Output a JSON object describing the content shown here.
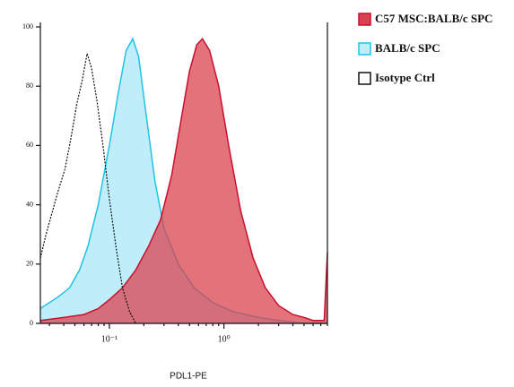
{
  "chart_data": {
    "type": "area",
    "x_label": "PDL1-PE",
    "xscale": "log",
    "xlim": [
      0.025,
      8
    ],
    "xticks": [
      {
        "value": 0.1,
        "label": "10⁻¹"
      },
      {
        "value": 1,
        "label": "10⁰"
      }
    ],
    "ylim": [
      0,
      100
    ],
    "yticks": [
      0,
      20,
      40,
      60,
      80,
      100
    ],
    "legend": "right",
    "series": [
      {
        "name": "BALB/c SPC",
        "color": "#1fc3e6",
        "fill": "#bfeefa",
        "style": "solid",
        "x": [
          0.025,
          0.03,
          0.036,
          0.045,
          0.055,
          0.065,
          0.08,
          0.1,
          0.12,
          0.14,
          0.16,
          0.18,
          0.21,
          0.25,
          0.3,
          0.4,
          0.55,
          0.8,
          1.2,
          2,
          3,
          5,
          8
        ],
        "values": [
          5,
          7,
          9,
          12,
          18,
          26,
          40,
          60,
          78,
          92,
          96,
          90,
          70,
          48,
          32,
          20,
          12,
          7,
          4,
          2,
          1,
          0,
          0
        ]
      },
      {
        "name": "C57 MSC:BALB/c SPC",
        "color": "#c8102e",
        "fill": "#d9434f",
        "style": "solid",
        "x": [
          0.025,
          0.04,
          0.06,
          0.08,
          0.1,
          0.13,
          0.17,
          0.22,
          0.28,
          0.35,
          0.42,
          0.5,
          0.58,
          0.65,
          0.75,
          0.9,
          1.1,
          1.4,
          1.8,
          2.3,
          3,
          4,
          5,
          6,
          7.5,
          8
        ],
        "values": [
          1,
          2,
          3,
          5,
          8,
          12,
          18,
          26,
          35,
          50,
          68,
          85,
          94,
          96,
          92,
          80,
          60,
          38,
          22,
          12,
          6,
          3,
          2,
          1,
          1,
          24
        ]
      },
      {
        "name": "Isotype Ctrl",
        "color": "#111111",
        "fill": "none",
        "style": "dotted",
        "x": [
          0.025,
          0.028,
          0.032,
          0.036,
          0.041,
          0.046,
          0.052,
          0.058,
          0.064,
          0.07,
          0.078,
          0.088,
          0.1,
          0.115,
          0.13,
          0.15,
          0.17
        ],
        "values": [
          22,
          30,
          38,
          45,
          52,
          62,
          74,
          82,
          91,
          86,
          75,
          60,
          42,
          25,
          12,
          4,
          0
        ]
      }
    ]
  }
}
